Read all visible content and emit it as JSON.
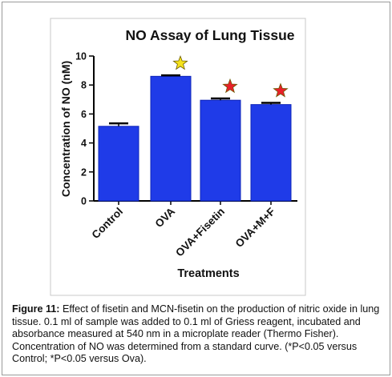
{
  "chart_data": {
    "type": "bar",
    "title": "NO Assay of Lung Tissue",
    "xlabel": "Treatments",
    "ylabel": "Concentration of NO (nM)",
    "ylim": [
      0,
      10
    ],
    "yticks": [
      0,
      2,
      4,
      6,
      8,
      10
    ],
    "categories": [
      "Control",
      "OVA",
      "OVA+Fisetin",
      "OVA+M+F"
    ],
    "values": [
      5.15,
      8.6,
      6.95,
      6.65
    ],
    "errors": [
      0.2,
      0.07,
      0.12,
      0.12
    ],
    "markers": [
      {
        "category": "OVA",
        "symbol": "star",
        "color": "#f5e21b"
      },
      {
        "category": "OVA+Fisetin",
        "symbol": "star",
        "color": "#e8202a"
      },
      {
        "category": "OVA+M+F",
        "symbol": "star",
        "color": "#e8202a"
      }
    ],
    "bar_color": "#1f3be8",
    "grid": false,
    "legend": "none"
  },
  "caption": {
    "label": "Figure 11:",
    "text": " Effect of fisetin and MCN-fisetin on the production of nitric oxide in lung tissue. 0.1 ml of sample was added to 0.1 ml of Griess reagent, incubated and absorbance measured at 540 nm in a microplate reader (Thermo Fisher). Concentration of NO was determined from a standard curve. (*P<0.05 versus Control; *P<0.05 versus Ova)."
  }
}
